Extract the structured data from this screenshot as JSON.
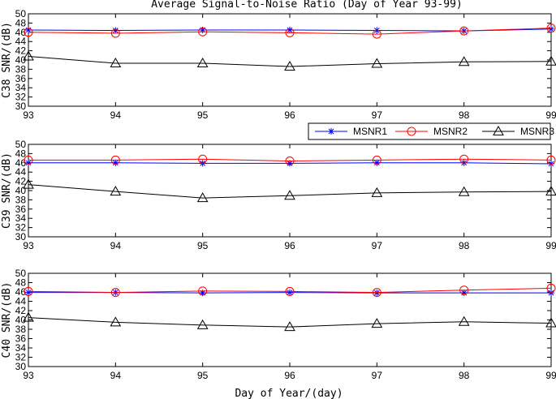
{
  "figure": {
    "title": "Average Signal-to-Noise Ratio (Day of Year 93-99)",
    "xlabel": "Day of Year/(day)"
  },
  "legend": {
    "placement": "above-middle-panel-right",
    "entries": [
      {
        "label": "MSNR1",
        "color": "#0000ff",
        "marker": "asterisk"
      },
      {
        "label": "MSNR2",
        "color": "#ff0000",
        "marker": "circle"
      },
      {
        "label": "MSNR3",
        "color": "#000000",
        "marker": "triangle"
      }
    ]
  },
  "chart_data": [
    {
      "type": "line",
      "ylabel": "C38 SNR/(dB)",
      "x": [
        93,
        94,
        95,
        96,
        97,
        98,
        99
      ],
      "xlim": [
        93,
        99
      ],
      "ylim": [
        30,
        50
      ],
      "yticks": [
        30,
        32,
        34,
        36,
        38,
        40,
        42,
        44,
        46,
        48,
        50
      ],
      "grid": false,
      "series": [
        {
          "name": "MSNR1",
          "color": "#0000ff",
          "values": [
            46.5,
            46.4,
            46.5,
            46.5,
            46.4,
            46.3,
            46.7
          ]
        },
        {
          "name": "MSNR2",
          "color": "#ff0000",
          "values": [
            46.0,
            45.8,
            46.1,
            45.9,
            45.6,
            46.3,
            46.9
          ]
        },
        {
          "name": "MSNR3",
          "color": "#000000",
          "values": [
            40.8,
            39.3,
            39.3,
            38.6,
            39.2,
            39.6,
            39.7
          ]
        }
      ]
    },
    {
      "type": "line",
      "ylabel": "C39 SNR/(dB)",
      "x": [
        93,
        94,
        95,
        96,
        97,
        98,
        99
      ],
      "xlim": [
        93,
        99
      ],
      "ylim": [
        30,
        50
      ],
      "yticks": [
        30,
        32,
        34,
        36,
        38,
        40,
        42,
        44,
        46,
        48,
        50
      ],
      "grid": false,
      "series": [
        {
          "name": "MSNR1",
          "color": "#0000ff",
          "values": [
            46.0,
            46.0,
            45.9,
            45.9,
            46.0,
            46.0,
            45.8
          ]
        },
        {
          "name": "MSNR2",
          "color": "#ff0000",
          "values": [
            46.6,
            46.6,
            46.8,
            46.4,
            46.6,
            46.8,
            46.6
          ]
        },
        {
          "name": "MSNR3",
          "color": "#000000",
          "values": [
            41.3,
            39.8,
            38.4,
            38.9,
            39.5,
            39.7,
            39.8
          ]
        }
      ]
    },
    {
      "type": "line",
      "ylabel": "C40 SNR/(dB)",
      "x": [
        93,
        94,
        95,
        96,
        97,
        98,
        99
      ],
      "xlim": [
        93,
        99
      ],
      "ylim": [
        30,
        50
      ],
      "yticks": [
        30,
        32,
        34,
        36,
        38,
        40,
        42,
        44,
        46,
        48,
        50
      ],
      "grid": false,
      "series": [
        {
          "name": "MSNR1",
          "color": "#0000ff",
          "values": [
            45.9,
            45.9,
            45.8,
            45.9,
            45.8,
            45.8,
            45.8
          ]
        },
        {
          "name": "MSNR2",
          "color": "#ff0000",
          "values": [
            46.1,
            45.9,
            46.2,
            46.1,
            45.9,
            46.4,
            46.8
          ]
        },
        {
          "name": "MSNR3",
          "color": "#000000",
          "values": [
            40.5,
            39.5,
            38.9,
            38.5,
            39.2,
            39.6,
            39.3
          ]
        }
      ]
    }
  ]
}
